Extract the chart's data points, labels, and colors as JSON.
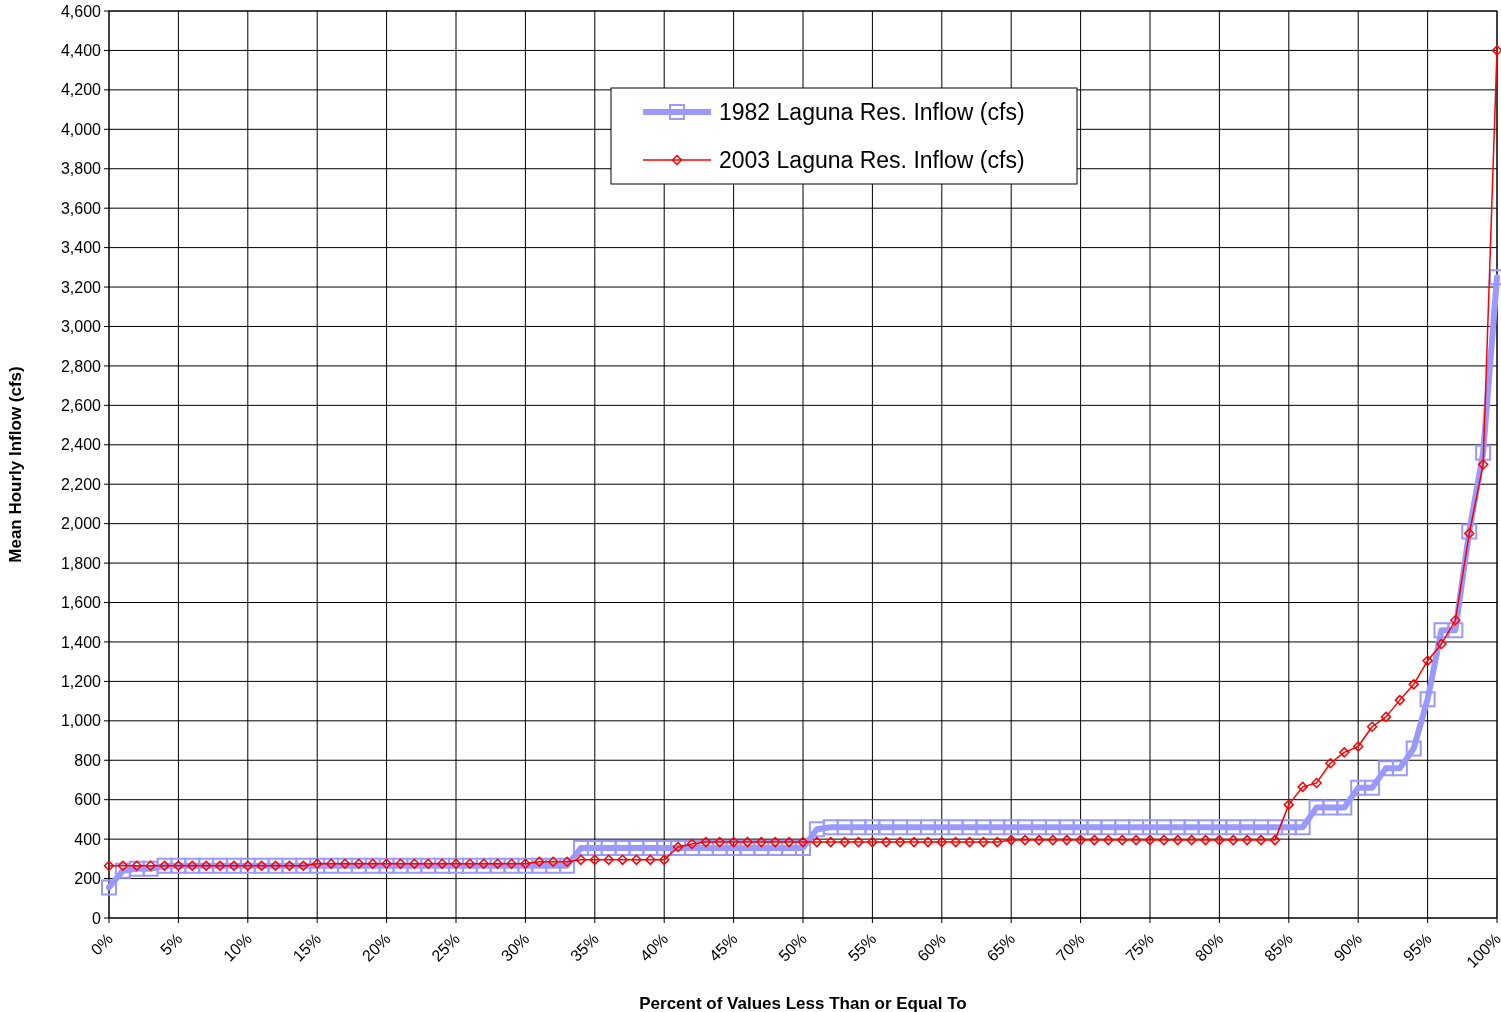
{
  "chart_data": {
    "type": "line",
    "xlabel": "Percent of Values Less Than or Equal To",
    "ylabel": "Mean Hourly Inflow (cfs)",
    "x": [
      0,
      1,
      2,
      3,
      4,
      5,
      6,
      7,
      8,
      9,
      10,
      11,
      12,
      13,
      14,
      15,
      16,
      17,
      18,
      19,
      20,
      21,
      22,
      23,
      24,
      25,
      26,
      27,
      28,
      29,
      30,
      31,
      32,
      33,
      34,
      35,
      36,
      37,
      38,
      39,
      40,
      41,
      42,
      43,
      44,
      45,
      46,
      47,
      48,
      49,
      50,
      51,
      52,
      53,
      54,
      55,
      56,
      57,
      58,
      59,
      60,
      61,
      62,
      63,
      64,
      65,
      66,
      67,
      68,
      69,
      70,
      71,
      72,
      73,
      74,
      75,
      76,
      77,
      78,
      79,
      80,
      81,
      82,
      83,
      84,
      85,
      86,
      87,
      88,
      89,
      90,
      91,
      92,
      93,
      94,
      95,
      96,
      97,
      98,
      99,
      100
    ],
    "xlim": [
      0,
      100
    ],
    "xticks": [
      {
        "value": 0,
        "label": "0%"
      },
      {
        "value": 5,
        "label": "5%"
      },
      {
        "value": 10,
        "label": "10%"
      },
      {
        "value": 15,
        "label": "15%"
      },
      {
        "value": 20,
        "label": "20%"
      },
      {
        "value": 25,
        "label": "25%"
      },
      {
        "value": 30,
        "label": "30%"
      },
      {
        "value": 35,
        "label": "35%"
      },
      {
        "value": 40,
        "label": "40%"
      },
      {
        "value": 45,
        "label": "45%"
      },
      {
        "value": 50,
        "label": "50%"
      },
      {
        "value": 55,
        "label": "55%"
      },
      {
        "value": 60,
        "label": "60%"
      },
      {
        "value": 65,
        "label": "65%"
      },
      {
        "value": 70,
        "label": "70%"
      },
      {
        "value": 75,
        "label": "75%"
      },
      {
        "value": 80,
        "label": "80%"
      },
      {
        "value": 85,
        "label": "85%"
      },
      {
        "value": 90,
        "label": "90%"
      },
      {
        "value": 95,
        "label": "95%"
      },
      {
        "value": 100,
        "label": "100%"
      }
    ],
    "ylim": [
      0,
      4600
    ],
    "yticks": [
      0,
      200,
      400,
      600,
      800,
      {
        "value": 1000,
        "label": "1,000"
      },
      {
        "value": 1200,
        "label": "1,200"
      },
      {
        "value": 1400,
        "label": "1,400"
      },
      {
        "value": 1600,
        "label": "1,600"
      },
      {
        "value": 1800,
        "label": "1,800"
      },
      {
        "value": 2000,
        "label": "2,000"
      },
      {
        "value": 2200,
        "label": "2,200"
      },
      {
        "value": 2400,
        "label": "2,400"
      },
      {
        "value": 2600,
        "label": "2,600"
      },
      {
        "value": 2800,
        "label": "2,800"
      },
      {
        "value": 3000,
        "label": "3,000"
      },
      {
        "value": 3200,
        "label": "3,200"
      },
      {
        "value": 3400,
        "label": "3,400"
      },
      {
        "value": 3600,
        "label": "3,600"
      },
      {
        "value": 3800,
        "label": "3,800"
      },
      {
        "value": 4000,
        "label": "4,000"
      },
      {
        "value": 4200,
        "label": "4,200"
      },
      {
        "value": 4400,
        "label": "4,400"
      },
      {
        "value": 4600,
        "label": "4,600"
      }
    ],
    "grid": true,
    "legend": "top",
    "series": [
      {
        "name": "1982 Laguna Res. Inflow (cfs)",
        "color": "#9999ff",
        "marker": "square",
        "values": [
          155,
          240,
          250,
          250,
          265,
          265,
          265,
          265,
          265,
          265,
          265,
          265,
          265,
          265,
          265,
          265,
          265,
          265,
          265,
          265,
          265,
          265,
          265,
          265,
          265,
          265,
          265,
          265,
          265,
          265,
          265,
          265,
          265,
          265,
          355,
          355,
          355,
          355,
          355,
          355,
          355,
          355,
          355,
          355,
          355,
          355,
          355,
          355,
          355,
          355,
          355,
          450,
          460,
          460,
          460,
          460,
          460,
          460,
          460,
          460,
          460,
          460,
          460,
          460,
          460,
          460,
          460,
          460,
          460,
          460,
          460,
          460,
          460,
          460,
          460,
          460,
          460,
          460,
          460,
          460,
          460,
          460,
          460,
          460,
          460,
          460,
          460,
          560,
          560,
          560,
          660,
          660,
          760,
          760,
          860,
          1110,
          1460,
          1460,
          1960,
          2360,
          3250
        ]
      },
      {
        "name": "2003 Laguna Res. Inflow (cfs)",
        "color": "#ff0000",
        "marker": "diamond",
        "values": [
          265,
          265,
          265,
          265,
          265,
          265,
          265,
          265,
          265,
          265,
          265,
          265,
          265,
          265,
          265,
          275,
          275,
          275,
          275,
          275,
          275,
          275,
          275,
          275,
          275,
          275,
          275,
          275,
          275,
          275,
          275,
          285,
          285,
          285,
          295,
          295,
          295,
          295,
          295,
          295,
          295,
          360,
          375,
          385,
          385,
          385,
          385,
          385,
          385,
          385,
          385,
          385,
          385,
          385,
          385,
          385,
          385,
          385,
          385,
          385,
          385,
          385,
          385,
          385,
          385,
          395,
          395,
          395,
          395,
          395,
          395,
          395,
          395,
          395,
          395,
          395,
          395,
          395,
          395,
          395,
          395,
          395,
          395,
          395,
          395,
          575,
          665,
          685,
          785,
          840,
          870,
          970,
          1020,
          1105,
          1185,
          1305,
          1390,
          1510,
          1950,
          2300,
          4400
        ]
      }
    ]
  }
}
